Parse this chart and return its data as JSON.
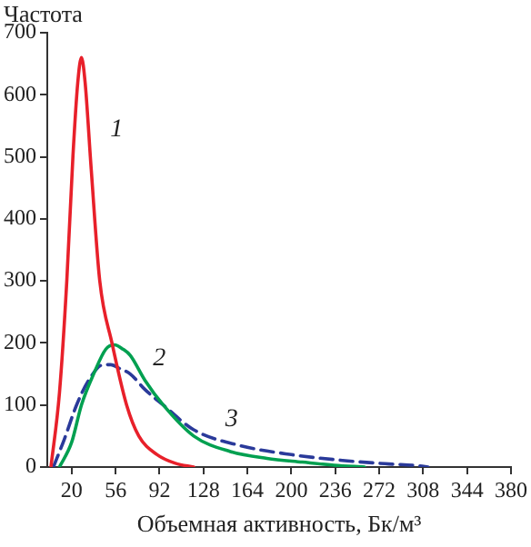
{
  "chart_data": {
    "type": "line",
    "ylabel": "Частота",
    "xlabel": "Объемная активность, Бк/м³",
    "xlim": [
      0,
      380
    ],
    "xticks": [
      20,
      56,
      92,
      128,
      164,
      200,
      236,
      272,
      308,
      344,
      380
    ],
    "ylim": [
      0,
      700
    ],
    "yticks": [
      0,
      100,
      200,
      300,
      400,
      500,
      600,
      700
    ],
    "grid": false,
    "legend": false,
    "marker": "none",
    "series": [
      {
        "name": "1",
        "color": "#e8202a",
        "line_style": "solid",
        "x": [
          3,
          10,
          16,
          21,
          25,
          28,
          31,
          36,
          43,
          53,
          65,
          75,
          90,
          105,
          120
        ],
        "values": [
          0,
          120,
          300,
          500,
          620,
          660,
          620,
          480,
          300,
          200,
          100,
          50,
          20,
          6,
          0
        ]
      },
      {
        "name": "2",
        "color": "#00a050",
        "line_style": "solid",
        "x": [
          10,
          20,
          28,
          38,
          48,
          55,
          62,
          68,
          80,
          95,
          120,
          150,
          180,
          209,
          235,
          260
        ],
        "values": [
          0,
          40,
          100,
          150,
          190,
          197,
          190,
          180,
          140,
          100,
          50,
          25,
          14,
          8,
          3,
          0
        ]
      },
      {
        "name": "3",
        "color": "#2a3a9a",
        "line_style": "dashed",
        "x": [
          5,
          14,
          24,
          34,
          46,
          52,
          60,
          68,
          80,
          95,
          120,
          157,
          200,
          246,
          280,
          305,
          312
        ],
        "values": [
          0,
          45,
          100,
          140,
          165,
          165,
          158,
          150,
          125,
          100,
          60,
          35,
          20,
          10,
          5,
          2,
          0
        ]
      }
    ]
  }
}
